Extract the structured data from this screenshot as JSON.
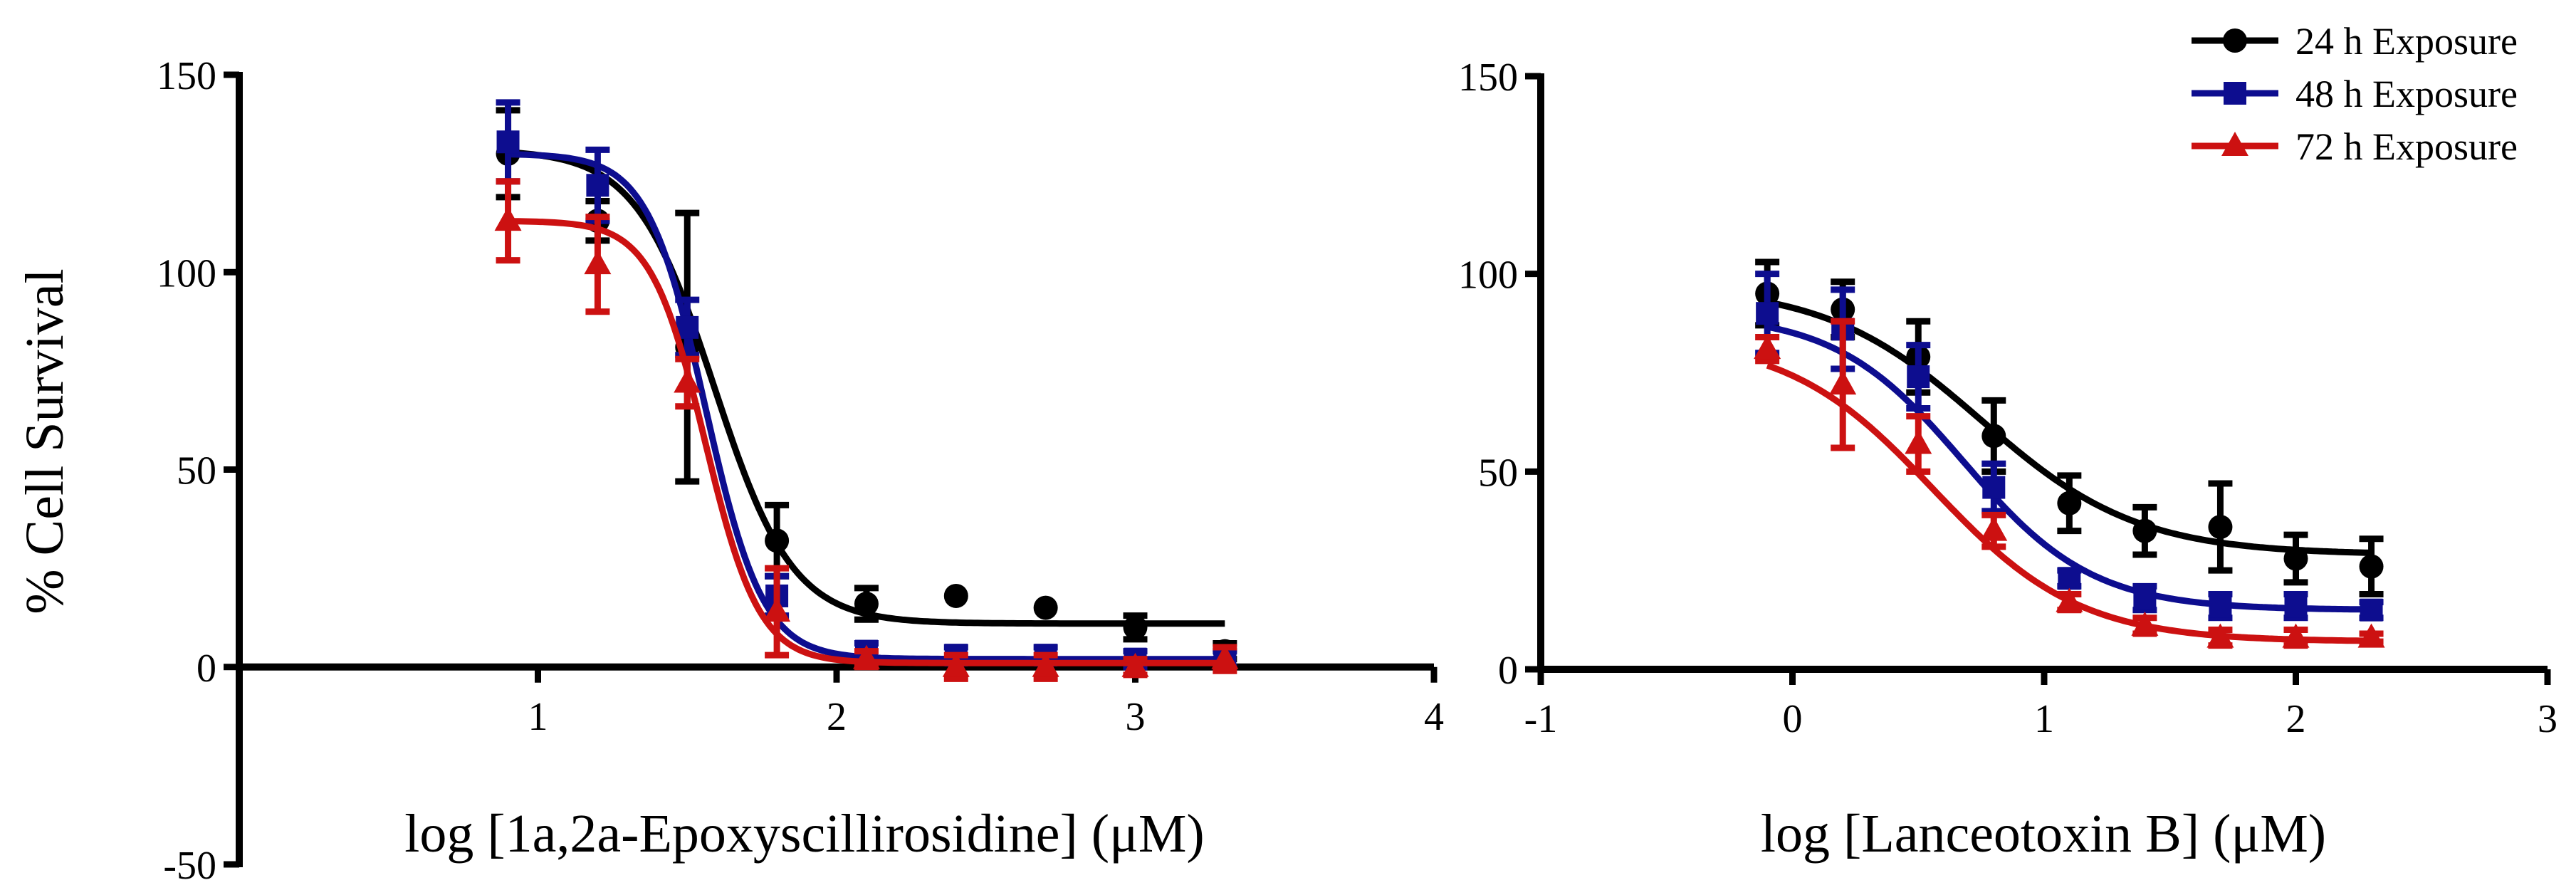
{
  "colors": {
    "s24": "#000000",
    "s48": "#0d0d8f",
    "s72": "#cc1111"
  },
  "legend": [
    {
      "label": "24 h Exposure",
      "marker": "circle",
      "color": "#000000"
    },
    {
      "label": "48 h Exposure",
      "marker": "square",
      "color": "#0d0d8f"
    },
    {
      "label": "72 h Exposure",
      "marker": "triangle",
      "color": "#cc1111"
    }
  ],
  "chart_data": [
    {
      "type": "scatter",
      "title": "",
      "ylabel": "% Cell Survival",
      "xlabel": "log [1a,2a-Epoxyscillirosidine] (μM)",
      "xlim": [
        0,
        4
      ],
      "ylim": [
        -50,
        150
      ],
      "xticks": [
        1,
        2,
        3,
        4
      ],
      "yticks": [
        -50,
        0,
        50,
        100,
        150
      ],
      "x": [
        0.9,
        1.2,
        1.5,
        1.8,
        2.1,
        2.4,
        2.7,
        3.0,
        3.3
      ],
      "series": [
        {
          "name": "24 h Exposure",
          "marker": "circle",
          "color": "#000000",
          "values": [
            130,
            113,
            81,
            32,
            16,
            18,
            15,
            10,
            4
          ],
          "errors": [
            11,
            5,
            34,
            9,
            4,
            0,
            0,
            3,
            2
          ],
          "fit": {
            "bottom": 11,
            "top": 131,
            "logec50": 1.59,
            "hill": -3.3
          }
        },
        {
          "name": "48 h Exposure",
          "marker": "square",
          "color": "#0d0d8f",
          "values": [
            133,
            122,
            86,
            18,
            4,
            3,
            3,
            2,
            2
          ],
          "errors": [
            10,
            9,
            7,
            5,
            2,
            2,
            2,
            2,
            2
          ],
          "fit": {
            "bottom": 2,
            "top": 130,
            "logec50": 1.56,
            "hill": -4.5
          }
        },
        {
          "name": "72 h Exposure",
          "marker": "triangle",
          "color": "#cc1111",
          "values": [
            113,
            102,
            72,
            14,
            2,
            0,
            0,
            0,
            2
          ],
          "errors": [
            10,
            12,
            6,
            11,
            2,
            3,
            3,
            2,
            3
          ],
          "fit": {
            "bottom": 1,
            "top": 113,
            "logec50": 1.56,
            "hill": -4.8
          }
        }
      ]
    },
    {
      "type": "scatter",
      "title": "",
      "ylabel": "",
      "xlabel": "log [Lanceotoxin B] (μM)",
      "xlim": [
        -1,
        3
      ],
      "ylim": [
        0,
        150
      ],
      "xticks": [
        -1,
        0,
        1,
        2,
        3
      ],
      "yticks": [
        0,
        50,
        100,
        150
      ],
      "x": [
        -0.1,
        0.2,
        0.5,
        0.8,
        1.1,
        1.4,
        1.7,
        2.0,
        2.3
      ],
      "series": [
        {
          "name": "24 h Exposure",
          "marker": "circle",
          "color": "#000000",
          "values": [
            95,
            91,
            79,
            59,
            42,
            35,
            36,
            28,
            26
          ],
          "errors": [
            8,
            7,
            9,
            9,
            7,
            6,
            11,
            6,
            7
          ],
          "fit": {
            "bottom": 29,
            "top": 97,
            "logec50": 0.75,
            "hill": -1.4
          }
        },
        {
          "name": "48 h Exposure",
          "marker": "square",
          "color": "#0d0d8f",
          "values": [
            90,
            86,
            74,
            46,
            23,
            18,
            16,
            16,
            15
          ],
          "errors": [
            10,
            10,
            8,
            6,
            2,
            3,
            3,
            3,
            2
          ],
          "fit": {
            "bottom": 15,
            "top": 90,
            "logec50": 0.68,
            "hill": -1.7
          }
        },
        {
          "name": "72 h Exposure",
          "marker": "triangle",
          "color": "#cc1111",
          "values": [
            81,
            72,
            57,
            35,
            17,
            11,
            8,
            8,
            8
          ],
          "errors": [
            3,
            16,
            7,
            4,
            2,
            2,
            2,
            2,
            1
          ],
          "fit": {
            "bottom": 7,
            "top": 84,
            "logec50": 0.56,
            "hill": -1.5
          }
        }
      ]
    }
  ]
}
